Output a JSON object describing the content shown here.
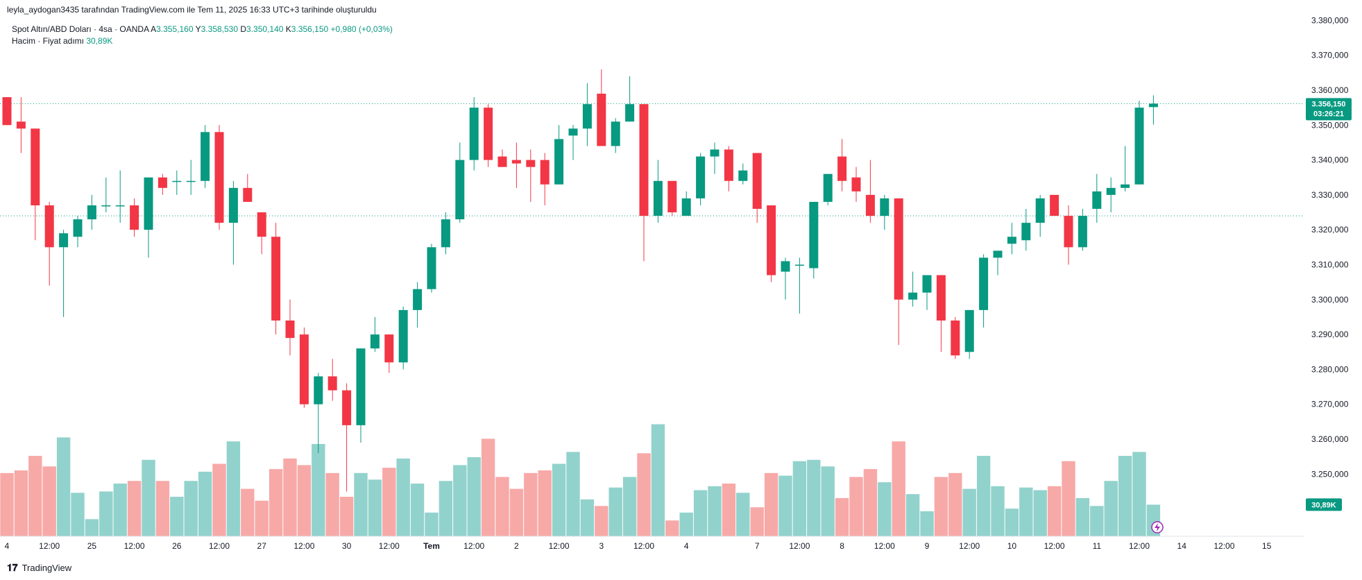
{
  "header": {
    "watermark": "leyla_aydogan3435 tarafından TradingView.com ile Tem 11, 2025 16:33 UTC+3 tarihinde oluşturuldu"
  },
  "legend": {
    "symbol": "Spot Altın/ABD Doları · 4sa · OANDA",
    "open_label": "A",
    "open": "3.355,160",
    "high_label": "Y",
    "high": "3.358,530",
    "low_label": "D",
    "low": "3.350,140",
    "close_label": "K",
    "close": "3.356,150",
    "change": "+0,980 (+0,03%)",
    "volume_label": "Hacim · Fiyat adımı",
    "volume_value": "30,89K"
  },
  "badges": {
    "price": "3.356,150",
    "countdown": "03:26:21",
    "volume": "30,89K"
  },
  "footer": {
    "brand": "TradingView"
  },
  "colors": {
    "up": "#089981",
    "down": "#f23645",
    "up_volume": "#92d2cc",
    "down_volume": "#f7a9a7",
    "grid_dotted": "#089981"
  },
  "chart_data": {
    "type": "candlestick",
    "price_axis": {
      "ticks": [
        3380,
        3370,
        3360,
        3350,
        3340,
        3330,
        3320,
        3310,
        3300,
        3290,
        3280,
        3270,
        3260,
        3250
      ],
      "tick_labels": [
        "3.380,000",
        "3.370,000",
        "3.360,000",
        "3.350,000",
        "3.340,000",
        "3.330,000",
        "3.320,000",
        "3.310,000",
        "3.300,000",
        "3.290,000",
        "3.280,000",
        "3.270,000",
        "3.260,000",
        "3.250,000"
      ]
    },
    "time_axis": {
      "labels": [
        "4",
        "12:00",
        "25",
        "12:00",
        "26",
        "12:00",
        "27",
        "12:00",
        "30",
        "12:00",
        "Tem",
        "12:00",
        "2",
        "12:00",
        "3",
        "12:00",
        "4",
        "7",
        "12:00",
        "8",
        "12:00",
        "9",
        "12:00",
        "10",
        "12:00",
        "11",
        "12:00",
        "14",
        "12:00",
        "15"
      ],
      "label_bars": [
        0,
        3,
        6,
        9,
        12,
        15,
        18,
        21,
        24,
        27,
        30,
        33,
        36,
        39,
        42,
        45,
        48,
        53,
        56,
        59,
        62,
        65,
        68,
        71,
        74,
        77,
        80,
        83,
        86,
        89
      ]
    },
    "reference_lines": [
      3356.15,
      3324
    ],
    "candles": [
      {
        "o": 3358,
        "h": 3358,
        "l": 3350,
        "c": 3350,
        "v": 0.48
      },
      {
        "o": 3351,
        "h": 3358,
        "l": 3342,
        "c": 3349,
        "v": 0.5
      },
      {
        "o": 3349,
        "h": 3349,
        "l": 3317,
        "c": 3327,
        "v": 0.61
      },
      {
        "o": 3327,
        "h": 3328,
        "l": 3304,
        "c": 3315,
        "v": 0.53
      },
      {
        "o": 3315,
        "h": 3320,
        "l": 3295,
        "c": 3319,
        "v": 0.75
      },
      {
        "o": 3318,
        "h": 3324,
        "l": 3315,
        "c": 3323,
        "v": 0.33
      },
      {
        "o": 3323,
        "h": 3330,
        "l": 3320,
        "c": 3327,
        "v": 0.13
      },
      {
        "o": 3327,
        "h": 3335,
        "l": 3325,
        "c": 3327,
        "v": 0.34
      },
      {
        "o": 3327,
        "h": 3337,
        "l": 3322,
        "c": 3327,
        "v": 0.4
      },
      {
        "o": 3327,
        "h": 3329,
        "l": 3318,
        "c": 3320,
        "v": 0.42
      },
      {
        "o": 3320,
        "h": 3335,
        "l": 3312,
        "c": 3335,
        "v": 0.58
      },
      {
        "o": 3335,
        "h": 3336,
        "l": 3330,
        "c": 3332,
        "v": 0.42
      },
      {
        "o": 3334,
        "h": 3337,
        "l": 3330,
        "c": 3334,
        "v": 0.3
      },
      {
        "o": 3334,
        "h": 3340,
        "l": 3330,
        "c": 3334,
        "v": 0.42
      },
      {
        "o": 3334,
        "h": 3350,
        "l": 3332,
        "c": 3348,
        "v": 0.49
      },
      {
        "o": 3348,
        "h": 3350,
        "l": 3320,
        "c": 3322,
        "v": 0.55
      },
      {
        "o": 3322,
        "h": 3334,
        "l": 3310,
        "c": 3332,
        "v": 0.72
      },
      {
        "o": 3332,
        "h": 3336,
        "l": 3328,
        "c": 3328,
        "v": 0.36
      },
      {
        "o": 3325,
        "h": 3325,
        "l": 3313,
        "c": 3318,
        "v": 0.27
      },
      {
        "o": 3318,
        "h": 3322,
        "l": 3290,
        "c": 3294,
        "v": 0.51
      },
      {
        "o": 3294,
        "h": 3300,
        "l": 3284,
        "c": 3289,
        "v": 0.59
      },
      {
        "o": 3290,
        "h": 3292,
        "l": 3269,
        "c": 3270,
        "v": 0.54
      },
      {
        "o": 3270,
        "h": 3279,
        "l": 3256,
        "c": 3278,
        "v": 0.7
      },
      {
        "o": 3278,
        "h": 3283,
        "l": 3271,
        "c": 3274,
        "v": 0.48
      },
      {
        "o": 3274,
        "h": 3276,
        "l": 3245,
        "c": 3264,
        "v": 0.3
      },
      {
        "o": 3264,
        "h": 3286,
        "l": 3259,
        "c": 3286,
        "v": 0.48
      },
      {
        "o": 3286,
        "h": 3295,
        "l": 3285,
        "c": 3290,
        "v": 0.43
      },
      {
        "o": 3290,
        "h": 3290,
        "l": 3279,
        "c": 3282,
        "v": 0.52
      },
      {
        "o": 3282,
        "h": 3298,
        "l": 3280,
        "c": 3297,
        "v": 0.59
      },
      {
        "o": 3297,
        "h": 3305,
        "l": 3292,
        "c": 3303,
        "v": 0.4
      },
      {
        "o": 3303,
        "h": 3316,
        "l": 3302,
        "c": 3315,
        "v": 0.18
      },
      {
        "o": 3315,
        "h": 3325,
        "l": 3313,
        "c": 3323,
        "v": 0.42
      },
      {
        "o": 3323,
        "h": 3345,
        "l": 3322,
        "c": 3340,
        "v": 0.54
      },
      {
        "o": 3340,
        "h": 3358,
        "l": 3337,
        "c": 3355,
        "v": 0.6
      },
      {
        "o": 3355,
        "h": 3356,
        "l": 3338,
        "c": 3340,
        "v": 0.74
      },
      {
        "o": 3341,
        "h": 3343,
        "l": 3338,
        "c": 3338,
        "v": 0.45
      },
      {
        "o": 3340,
        "h": 3345,
        "l": 3332,
        "c": 3339,
        "v": 0.36
      },
      {
        "o": 3340,
        "h": 3343,
        "l": 3328,
        "c": 3338,
        "v": 0.48
      },
      {
        "o": 3340,
        "h": 3342,
        "l": 3327,
        "c": 3333,
        "v": 0.5
      },
      {
        "o": 3333,
        "h": 3350,
        "l": 3333,
        "c": 3346,
        "v": 0.55
      },
      {
        "o": 3347,
        "h": 3350,
        "l": 3340,
        "c": 3349,
        "v": 0.64
      },
      {
        "o": 3349,
        "h": 3362,
        "l": 3344,
        "c": 3356,
        "v": 0.28
      },
      {
        "o": 3359,
        "h": 3366,
        "l": 3344,
        "c": 3344,
        "v": 0.23
      },
      {
        "o": 3344,
        "h": 3352,
        "l": 3342,
        "c": 3351,
        "v": 0.37
      },
      {
        "o": 3351,
        "h": 3364,
        "l": 3351,
        "c": 3356,
        "v": 0.45
      },
      {
        "o": 3356,
        "h": 3356,
        "l": 3311,
        "c": 3324,
        "v": 0.63
      },
      {
        "o": 3324,
        "h": 3340,
        "l": 3322,
        "c": 3334,
        "v": 0.85
      },
      {
        "o": 3334,
        "h": 3334,
        "l": 3324,
        "c": 3325,
        "v": 0.12
      },
      {
        "o": 3324,
        "h": 3331,
        "l": 3324,
        "c": 3329,
        "v": 0.18
      },
      {
        "o": 3329,
        "h": 3342,
        "l": 3327,
        "c": 3341,
        "v": 0.35
      },
      {
        "o": 3341,
        "h": 3345,
        "l": 3336,
        "c": 3343,
        "v": 0.38
      },
      {
        "o": 3343,
        "h": 3344,
        "l": 3331,
        "c": 3334,
        "v": 0.4
      },
      {
        "o": 3334,
        "h": 3339,
        "l": 3333,
        "c": 3337,
        "v": 0.33
      },
      {
        "o": 3342,
        "h": 3342,
        "l": 3322,
        "c": 3326,
        "v": 0.22
      },
      {
        "o": 3327,
        "h": 3327,
        "l": 3305,
        "c": 3307,
        "v": 0.48
      },
      {
        "o": 3308,
        "h": 3312,
        "l": 3300,
        "c": 3311,
        "v": 0.46
      },
      {
        "o": 3310,
        "h": 3312,
        "l": 3296,
        "c": 3310,
        "v": 0.57
      },
      {
        "o": 3309,
        "h": 3328,
        "l": 3306,
        "c": 3328,
        "v": 0.58
      },
      {
        "o": 3328,
        "h": 3336,
        "l": 3327,
        "c": 3336,
        "v": 0.53
      },
      {
        "o": 3341,
        "h": 3346,
        "l": 3331,
        "c": 3334,
        "v": 0.29
      },
      {
        "o": 3335,
        "h": 3338,
        "l": 3328,
        "c": 3331,
        "v": 0.45
      },
      {
        "o": 3330,
        "h": 3340,
        "l": 3322,
        "c": 3324,
        "v": 0.51
      },
      {
        "o": 3324,
        "h": 3330,
        "l": 3320,
        "c": 3329,
        "v": 0.41
      },
      {
        "o": 3329,
        "h": 3329,
        "l": 3287,
        "c": 3300,
        "v": 0.72
      },
      {
        "o": 3300,
        "h": 3308,
        "l": 3298,
        "c": 3302,
        "v": 0.32
      },
      {
        "o": 3302,
        "h": 3307,
        "l": 3297,
        "c": 3307,
        "v": 0.19
      },
      {
        "o": 3307,
        "h": 3307,
        "l": 3285,
        "c": 3294,
        "v": 0.45
      },
      {
        "o": 3294,
        "h": 3295,
        "l": 3283,
        "c": 3284,
        "v": 0.48
      },
      {
        "o": 3285,
        "h": 3297,
        "l": 3283,
        "c": 3297,
        "v": 0.36
      },
      {
        "o": 3297,
        "h": 3313,
        "l": 3292,
        "c": 3312,
        "v": 0.61
      },
      {
        "o": 3312,
        "h": 3313,
        "l": 3307,
        "c": 3314,
        "v": 0.38
      },
      {
        "o": 3316,
        "h": 3322,
        "l": 3313,
        "c": 3318,
        "v": 0.21
      },
      {
        "o": 3317,
        "h": 3326,
        "l": 3314,
        "c": 3322,
        "v": 0.37
      },
      {
        "o": 3322,
        "h": 3330,
        "l": 3318,
        "c": 3329,
        "v": 0.35
      },
      {
        "o": 3330,
        "h": 3330,
        "l": 3325,
        "c": 3324,
        "v": 0.38
      },
      {
        "o": 3324,
        "h": 3327,
        "l": 3310,
        "c": 3315,
        "v": 0.57
      },
      {
        "o": 3315,
        "h": 3326,
        "l": 3314,
        "c": 3324,
        "v": 0.29
      },
      {
        "o": 3326,
        "h": 3336,
        "l": 3322,
        "c": 3331,
        "v": 0.23
      },
      {
        "o": 3330,
        "h": 3335,
        "l": 3325,
        "c": 3332,
        "v": 0.42
      },
      {
        "o": 3332,
        "h": 3344,
        "l": 3331,
        "c": 3333,
        "v": 0.61
      },
      {
        "o": 3333,
        "h": 3357,
        "l": 3333,
        "c": 3355,
        "v": 0.64
      },
      {
        "o": 3355.16,
        "h": 3358.53,
        "l": 3350.14,
        "c": 3356.15,
        "v": 0.24
      }
    ]
  }
}
